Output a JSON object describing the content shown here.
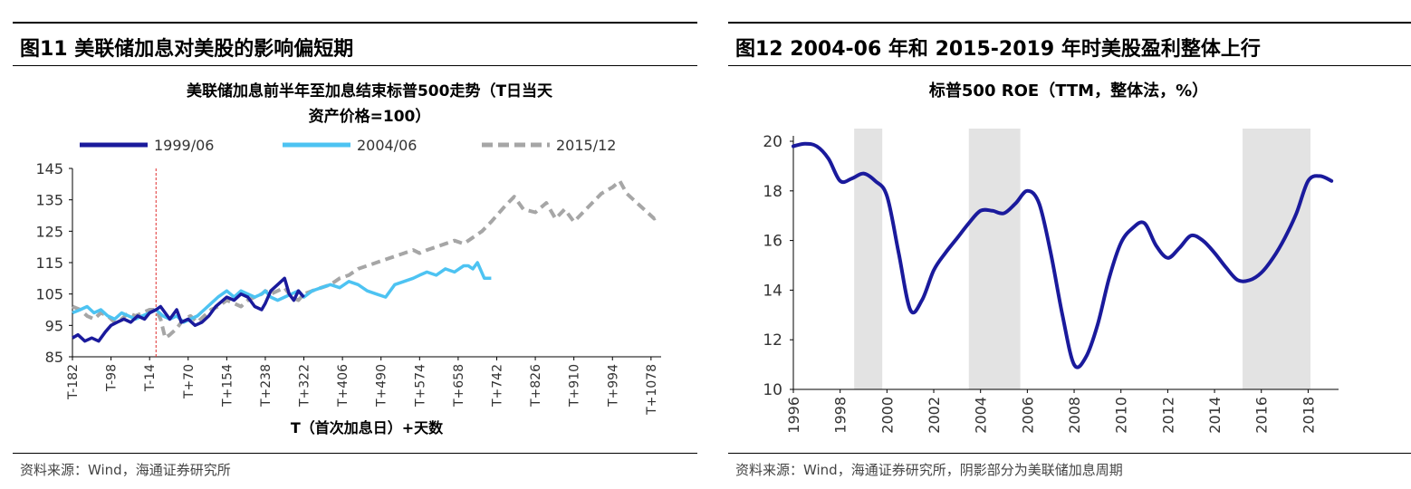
{
  "left": {
    "figure_title": "图11 美联储加息对美股的影响偏短期",
    "source": "资料来源：Wind，海通证券研究所"
  },
  "right": {
    "figure_title": "图12 2004-06 年和 2015-2019 年时美股盈利整体上行",
    "source": "资料来源：Wind，海通证券研究所，阴影部分为美联储加息周期"
  },
  "chart_data": [
    {
      "type": "line",
      "title": "美联储加息前半年至加息结束标普500走势（T日当天资产价格=100）",
      "title_lines": [
        "美联储加息前半年至加息结束标普500走势（T日当天",
        "资产价格=100）"
      ],
      "xlabel": "T（首次加息日）+天数",
      "ylabel": "",
      "xlim": [
        -182,
        1100
      ],
      "ylim": [
        85,
        145
      ],
      "yticks": [
        85,
        95,
        105,
        115,
        125,
        135,
        145
      ],
      "xticks": [
        -182,
        -98,
        -14,
        70,
        154,
        238,
        322,
        406,
        490,
        574,
        658,
        742,
        826,
        910,
        994,
        1078
      ],
      "xtick_labels": [
        "T-182",
        "T-98",
        "T-14",
        "T+70",
        "T+154",
        "T+238",
        "T+322",
        "T+406",
        "T+490",
        "T+574",
        "T+658",
        "T+742",
        "T+826",
        "T+910",
        "T+994",
        "T+1078"
      ],
      "reference_line_x": 0,
      "legend_position": "top",
      "series": [
        {
          "name": "1999/06",
          "color": "#1a1a9c",
          "style": "solid",
          "x": [
            -182,
            -170,
            -155,
            -140,
            -125,
            -110,
            -98,
            -85,
            -70,
            -55,
            -40,
            -25,
            -14,
            0,
            10,
            20,
            30,
            45,
            55,
            70,
            85,
            100,
            115,
            130,
            154,
            170,
            185,
            200,
            215,
            230,
            238,
            250,
            265,
            280,
            290,
            300,
            310,
            322
          ],
          "y": [
            91,
            92,
            90,
            91,
            90,
            93,
            95,
            96,
            97,
            96,
            98,
            97,
            99,
            100,
            101,
            99,
            97,
            100,
            96,
            97,
            95,
            96,
            98,
            101,
            104,
            103,
            105,
            104,
            101,
            100,
            102,
            106,
            108,
            110,
            105,
            103,
            106,
            104
          ]
        },
        {
          "name": "2004/06",
          "color": "#4dc3f2",
          "style": "solid",
          "x": [
            -182,
            -165,
            -150,
            -135,
            -120,
            -105,
            -90,
            -75,
            -60,
            -45,
            -30,
            -14,
            0,
            15,
            30,
            45,
            60,
            75,
            90,
            105,
            120,
            135,
            154,
            170,
            185,
            200,
            215,
            230,
            238,
            250,
            265,
            280,
            295,
            310,
            322,
            340,
            360,
            380,
            400,
            420,
            440,
            460,
            480,
            500,
            520,
            540,
            560,
            574,
            590,
            610,
            630,
            650,
            670,
            680,
            690,
            700,
            715,
            730
          ],
          "y": [
            99,
            100,
            101,
            99,
            100,
            98,
            97,
            99,
            98,
            97,
            98,
            99,
            100,
            98,
            97,
            98,
            96,
            97,
            98,
            100,
            102,
            104,
            106,
            104,
            106,
            105,
            104,
            105,
            106,
            104,
            103,
            104,
            105,
            106,
            104,
            106,
            107,
            108,
            107,
            109,
            108,
            106,
            105,
            104,
            108,
            109,
            110,
            111,
            112,
            111,
            113,
            112,
            114,
            114,
            113,
            115,
            110,
            110
          ]
        },
        {
          "name": "2015/12",
          "color": "#a6a6a6",
          "style": "dashed",
          "x": [
            -182,
            -165,
            -150,
            -135,
            -120,
            -105,
            -90,
            -75,
            -60,
            -45,
            -30,
            -14,
            0,
            10,
            20,
            30,
            45,
            60,
            75,
            90,
            105,
            120,
            135,
            154,
            170,
            185,
            200,
            215,
            230,
            238,
            250,
            265,
            280,
            295,
            310,
            322,
            340,
            360,
            380,
            400,
            420,
            440,
            460,
            480,
            500,
            520,
            540,
            560,
            574,
            590,
            610,
            630,
            650,
            670,
            690,
            710,
            730,
            742,
            760,
            780,
            800,
            826,
            850,
            870,
            890,
            910,
            930,
            950,
            970,
            994,
            1010,
            1025,
            1040,
            1055,
            1070,
            1085,
            1095
          ],
          "y": [
            101,
            100,
            98,
            97,
            99,
            98,
            96,
            97,
            99,
            98,
            99,
            100,
            100,
            97,
            91,
            92,
            94,
            97,
            98,
            96,
            98,
            100,
            101,
            103,
            102,
            101,
            103,
            104,
            105,
            106,
            105,
            106,
            107,
            104,
            103,
            105,
            106,
            107,
            108,
            110,
            111,
            113,
            114,
            115,
            116,
            117,
            118,
            119,
            118,
            119,
            120,
            121,
            122,
            121,
            123,
            125,
            128,
            130,
            133,
            136,
            132,
            131,
            134,
            129,
            132,
            128,
            131,
            134,
            137,
            139,
            141,
            137,
            135,
            133,
            131,
            129,
            130
          ]
        }
      ]
    },
    {
      "type": "line",
      "title": "标普500 ROE（TTM，整体法，%）",
      "xlabel": "",
      "ylabel": "",
      "xlim": [
        1996,
        2019.3
      ],
      "ylim": [
        10,
        20
      ],
      "yticks": [
        10,
        12,
        14,
        16,
        18,
        20
      ],
      "xticks": [
        1996,
        1998,
        2000,
        2002,
        2004,
        2006,
        2008,
        2010,
        2012,
        2014,
        2016,
        2018
      ],
      "shaded_periods": [
        [
          1998.6,
          1999.8
        ],
        [
          2003.5,
          2005.7
        ],
        [
          2015.2,
          2018.1
        ]
      ],
      "series": [
        {
          "name": "标普500 ROE",
          "color": "#1a1a9c",
          "style": "solid",
          "x": [
            1996,
            1996.5,
            1997,
            1997.5,
            1998,
            1998.5,
            1999,
            1999.5,
            2000,
            2000.5,
            2001,
            2001.5,
            2002,
            2002.5,
            2003,
            2003.5,
            2004,
            2004.5,
            2005,
            2005.5,
            2006,
            2006.5,
            2007,
            2007.5,
            2008,
            2008.5,
            2009,
            2009.5,
            2010,
            2010.5,
            2011,
            2011.5,
            2012,
            2012.5,
            2013,
            2013.5,
            2014,
            2014.5,
            2015,
            2015.5,
            2016,
            2016.5,
            2017,
            2017.5,
            2018,
            2018.5,
            2019
          ],
          "y": [
            19.8,
            19.9,
            19.8,
            19.3,
            18.4,
            18.5,
            18.7,
            18.4,
            17.8,
            15.5,
            13.2,
            13.6,
            14.8,
            15.5,
            16.1,
            16.7,
            17.2,
            17.2,
            17.1,
            17.5,
            18.0,
            17.5,
            15.5,
            13.0,
            11.0,
            11.3,
            12.6,
            14.5,
            15.9,
            16.5,
            16.7,
            15.8,
            15.3,
            15.7,
            16.2,
            16.0,
            15.5,
            14.9,
            14.4,
            14.4,
            14.7,
            15.3,
            16.1,
            17.1,
            18.4,
            18.6,
            18.4
          ]
        }
      ]
    }
  ]
}
